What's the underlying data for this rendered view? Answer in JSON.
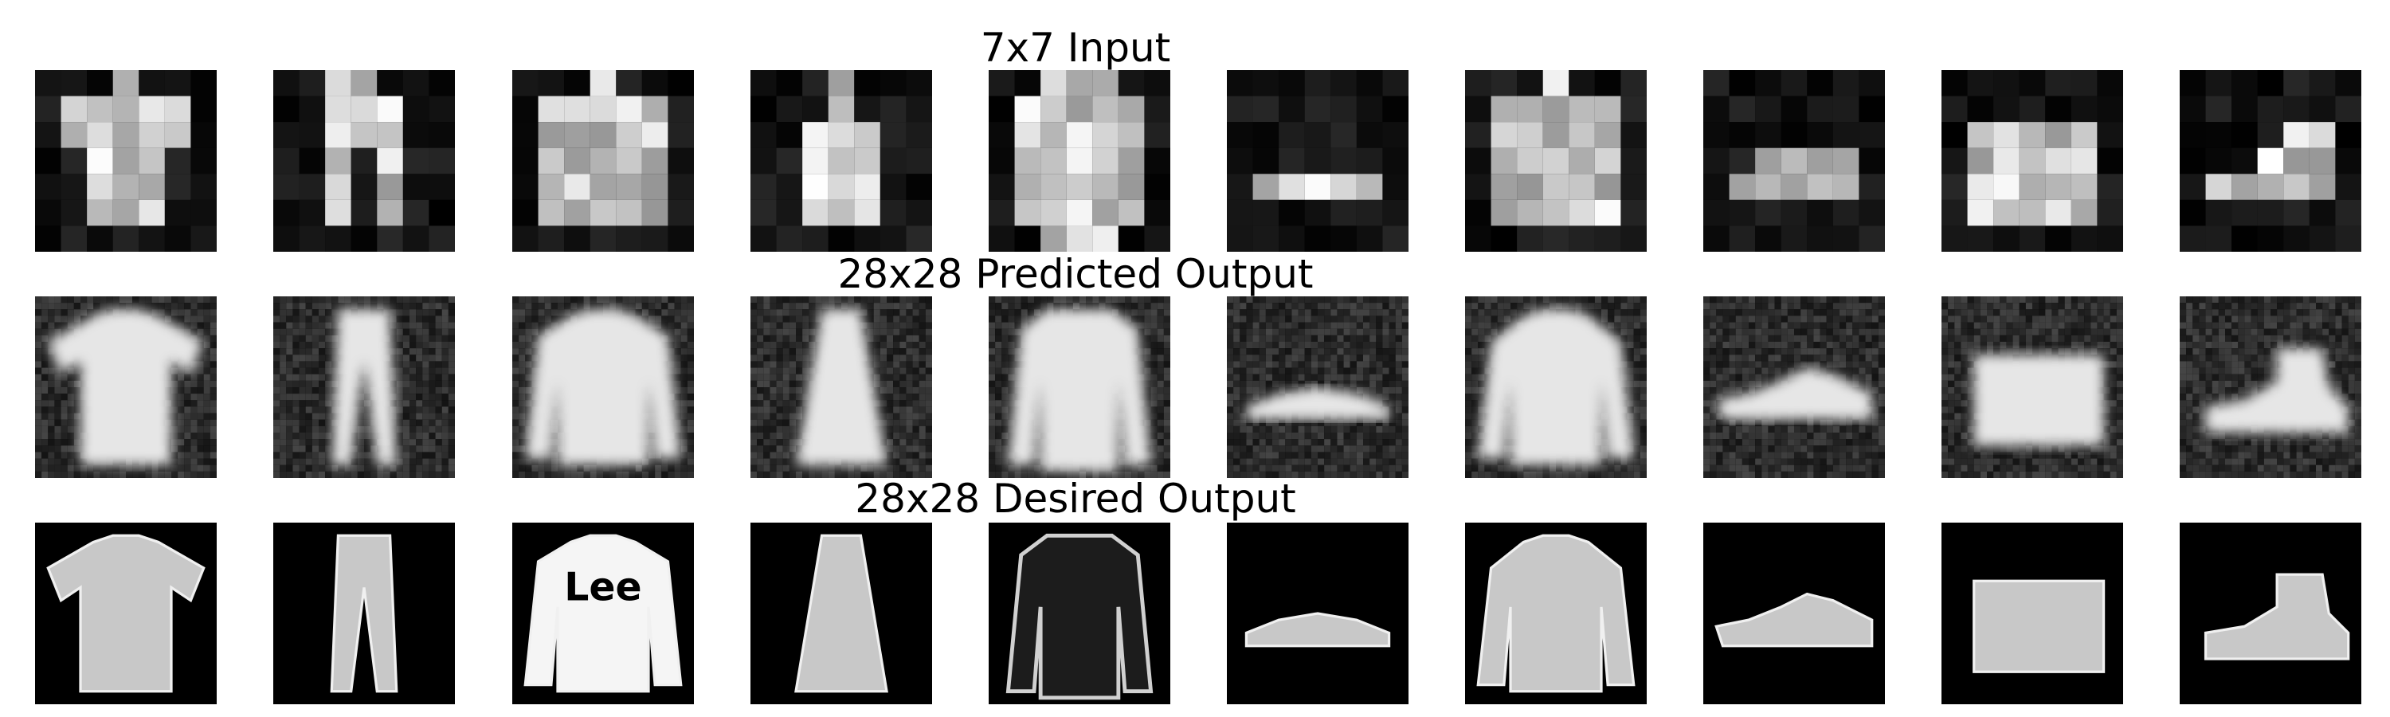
{
  "figure": {
    "rows": [
      {
        "title": "7x7 Input",
        "kind": "input",
        "tiles": [
          {
            "item": "t-shirt"
          },
          {
            "item": "trousers"
          },
          {
            "item": "pullover"
          },
          {
            "item": "dress"
          },
          {
            "item": "coat"
          },
          {
            "item": "sandal"
          },
          {
            "item": "shirt"
          },
          {
            "item": "sneaker"
          },
          {
            "item": "bag"
          },
          {
            "item": "ankle-boot"
          }
        ]
      },
      {
        "title": "28x28 Predicted Output",
        "kind": "predicted",
        "tiles": [
          {
            "item": "t-shirt"
          },
          {
            "item": "trousers"
          },
          {
            "item": "pullover"
          },
          {
            "item": "dress"
          },
          {
            "item": "coat"
          },
          {
            "item": "sandal"
          },
          {
            "item": "shirt"
          },
          {
            "item": "sneaker"
          },
          {
            "item": "bag"
          },
          {
            "item": "ankle-boot"
          }
        ]
      },
      {
        "title": "28x28 Desired Output",
        "kind": "desired",
        "tiles": [
          {
            "item": "t-shirt",
            "text": "",
            "logo_text": ""
          },
          {
            "item": "trousers"
          },
          {
            "item": "pullover",
            "logo_text": "Lee"
          },
          {
            "item": "dress"
          },
          {
            "item": "coat"
          },
          {
            "item": "sandal"
          },
          {
            "item": "shirt"
          },
          {
            "item": "sneaker"
          },
          {
            "item": "bag"
          },
          {
            "item": "ankle-boot"
          }
        ]
      }
    ],
    "colors": {
      "background": "#000000",
      "page": "#ffffff"
    }
  }
}
